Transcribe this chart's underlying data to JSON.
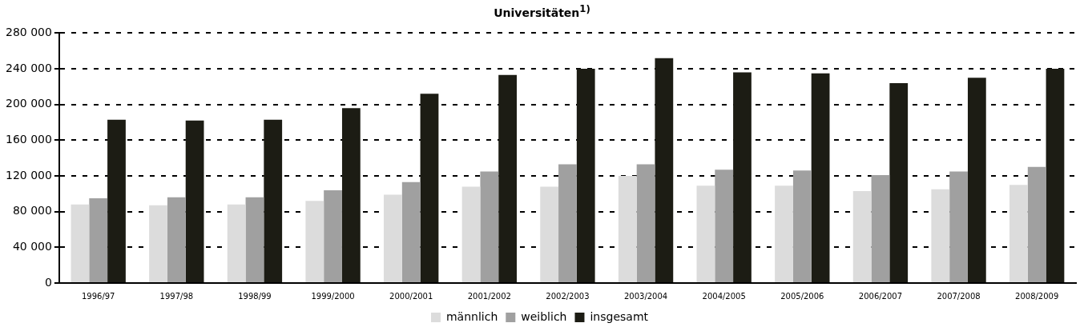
{
  "chart_data": {
    "type": "bar",
    "title": "Universitäten$^{1)}$",
    "categories": [
      "1996/97",
      "1997/98",
      "1998/99",
      "1999/2000",
      "2000/2001",
      "2001/2002",
      "2002/2003",
      "2003/2004",
      "2004/2005",
      "2005/2006",
      "2006/2007",
      "2007/2008",
      "2008/2009"
    ],
    "series": [
      {
        "name": "männlich",
        "color": "#dcdcdc",
        "values": [
          88000,
          87000,
          88000,
          92000,
          99000,
          108000,
          108000,
          120000,
          109000,
          109000,
          103000,
          105000,
          110000
        ]
      },
      {
        "name": "weiblich",
        "color": "#a0a0a0",
        "values": [
          95000,
          96000,
          96000,
          104000,
          113000,
          125000,
          133000,
          133000,
          127000,
          126000,
          121000,
          125000,
          130000
        ]
      },
      {
        "name": "insgesamt",
        "color": "#1c1c14",
        "values": [
          183000,
          182000,
          183000,
          196000,
          212000,
          233000,
          240000,
          252000,
          236000,
          235000,
          224000,
          230000,
          240000
        ]
      }
    ],
    "ylim": [
      0,
      280000
    ],
    "yticks": [
      {
        "value": 0,
        "label": "0"
      },
      {
        "value": 40000,
        "label": "40 000"
      },
      {
        "value": 80000,
        "label": "80 000"
      },
      {
        "value": 120000,
        "label": "120 000"
      },
      {
        "value": 160000,
        "label": "160 000"
      },
      {
        "value": 200000,
        "label": "200 000"
      },
      {
        "value": 240000,
        "label": "240 000"
      },
      {
        "value": 280000,
        "label": "280 000"
      }
    ],
    "grid": "y",
    "legend": "bottom"
  }
}
